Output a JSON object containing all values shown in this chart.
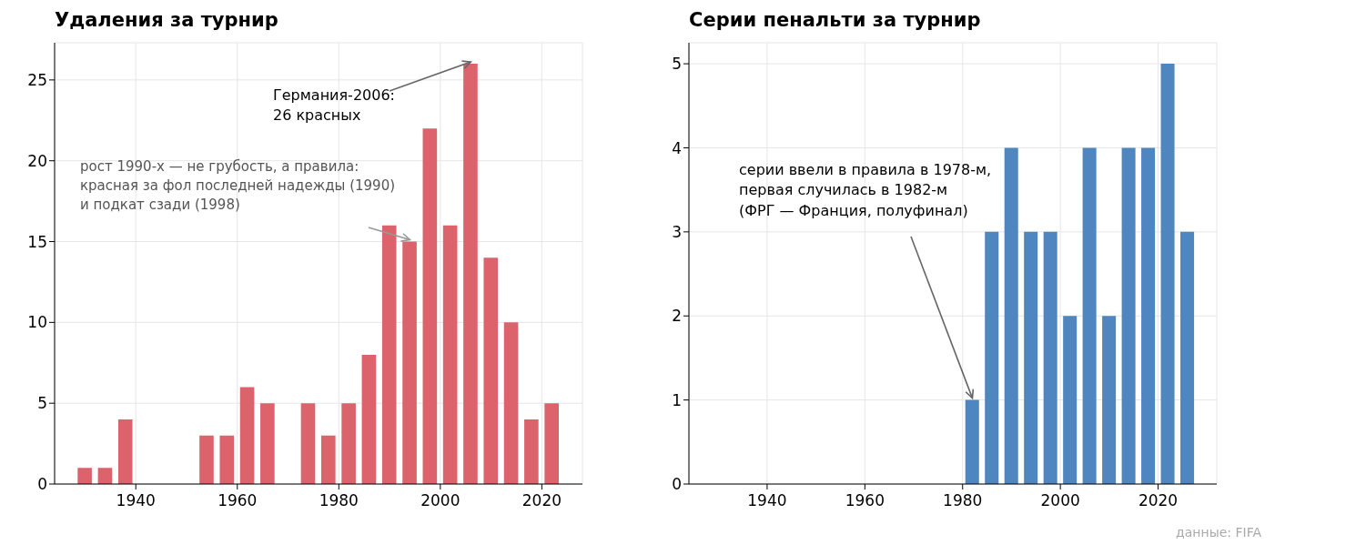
{
  "chart_data": [
    {
      "type": "bar",
      "title": "Удаления за турнир",
      "x": [
        1930,
        1934,
        1938,
        1954,
        1958,
        1962,
        1966,
        1974,
        1978,
        1982,
        1986,
        1990,
        1994,
        1998,
        2002,
        2006,
        2010,
        2014,
        2018,
        2022
      ],
      "values": [
        1,
        1,
        4,
        3,
        3,
        6,
        5,
        5,
        3,
        5,
        8,
        16,
        15,
        22,
        16,
        26,
        14,
        10,
        4,
        5
      ],
      "color": "#dc626b",
      "xlim": [
        1924,
        2028
      ],
      "xticks": [
        1940,
        1960,
        1980,
        2000,
        2020
      ],
      "ylim": [
        0,
        27.3
      ],
      "yticks": [
        0,
        5,
        10,
        15,
        20,
        25
      ],
      "grid": true,
      "annotations": [
        {
          "text": "Германия-2006:\n26 красных",
          "x": 2006,
          "y": 26
        },
        {
          "text": "рост 1990-х — не грубость, а правила:\nкрасная за фол последней надежды (1990)\nи подкат сзади (1998)",
          "x": 1994,
          "y": 15
        }
      ]
    },
    {
      "type": "bar",
      "title": "Серии пенальти за турнир",
      "x": [
        1982,
        1986,
        1990,
        1994,
        1998,
        2002,
        2006,
        2010,
        2014,
        2018,
        2022,
        2026
      ],
      "values": [
        1,
        3,
        4,
        3,
        3,
        2,
        4,
        2,
        4,
        4,
        5,
        3
      ],
      "color": "#4f86c0",
      "xlim": [
        1924,
        2032
      ],
      "xticks": [
        1940,
        1960,
        1980,
        2000,
        2020
      ],
      "ylim": [
        0,
        5.25
      ],
      "yticks": [
        0,
        1,
        2,
        3,
        4,
        5
      ],
      "grid": true,
      "annotations": [
        {
          "text": "серии ввели в правила в 1978-м,\nпервая случилась в 1982-м\n(ФРГ — Франция, полуфинал)",
          "x": 1982,
          "y": 1
        },
        "данные: FIFA"
      ]
    }
  ]
}
